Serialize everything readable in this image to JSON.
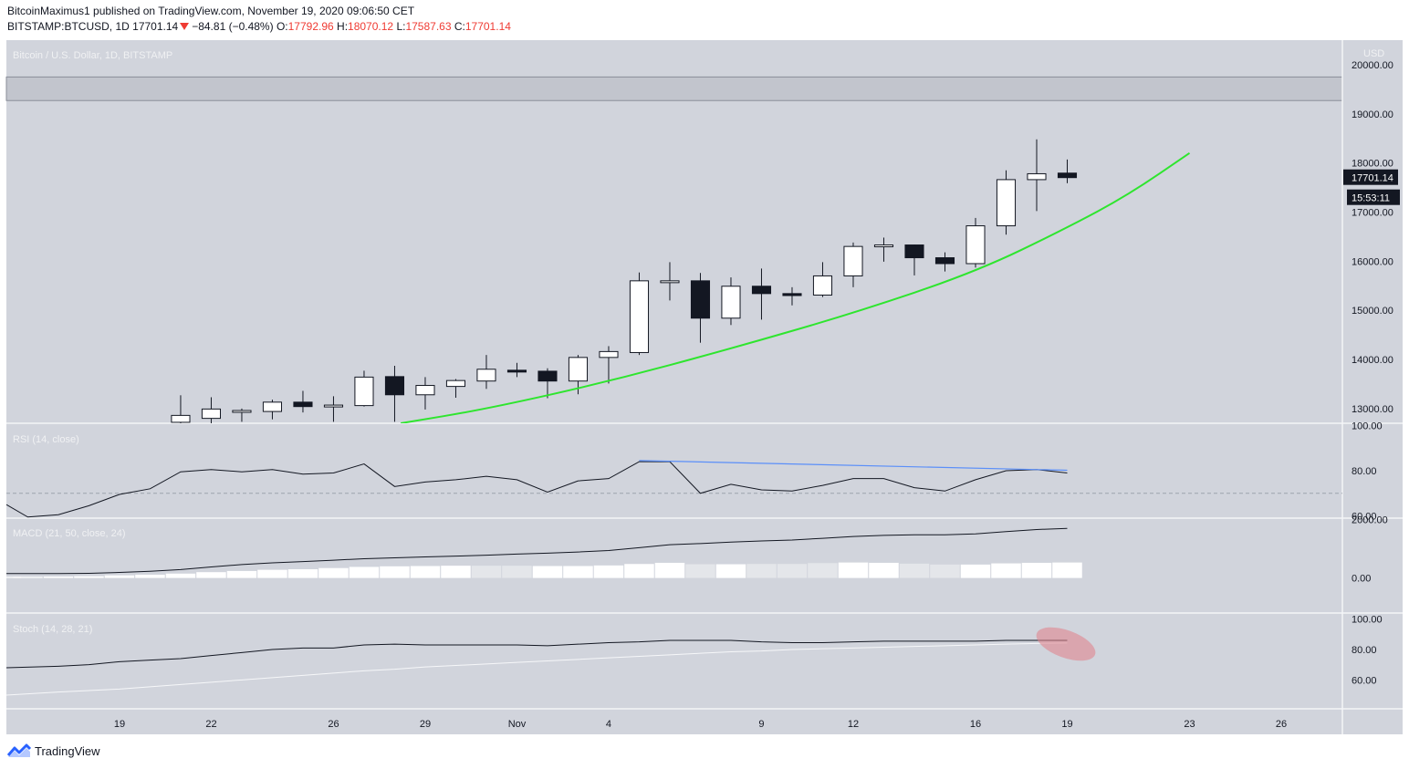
{
  "header": {
    "publisher": "BitcoinMaximus1",
    "publish_text": " published on TradingView.com, November 19, 2020 09:06:50 CET",
    "symbol": "BITSTAMP:BTCUSD, 1D",
    "last": "17701.14",
    "change": "−84.81 (−0.48%)",
    "o_label": "O:",
    "o_val": "17792.96",
    "h_label": "H:",
    "h_val": "18070.12",
    "l_label": "L:",
    "l_val": "17587.63",
    "c_label": "C:",
    "c_val": "17701.14"
  },
  "footer": {
    "brand": "TradingView"
  },
  "colors": {
    "pane_bg": "#d1d4dc",
    "up_candle": "#ffffff",
    "down_candle": "#131722",
    "curve": "#2ee52e",
    "rsi_trendline": "#5b8ff9",
    "highlight": "#e0868f"
  },
  "chart_data": [
    {
      "type": "candlestick",
      "title": "Bitcoin / U.S. Dollar, 1D, BITSTAMP",
      "currency": "USD",
      "y_ticks": [
        "13000.00",
        "14000.00",
        "15000.00",
        "16000.00",
        "17000.00",
        "18000.00",
        "19000.00",
        "20000.00"
      ],
      "ylim": [
        12700,
        20500
      ],
      "resistance_band": [
        19270,
        19750
      ],
      "price_label": "17701.14",
      "countdown_label": "15:53:11",
      "x_ticks": [
        {
          "day": 0,
          "label": "19"
        },
        {
          "day": 3,
          "label": "22"
        },
        {
          "day": 7,
          "label": "26"
        },
        {
          "day": 10,
          "label": "29"
        },
        {
          "day": 13,
          "label": "Nov"
        },
        {
          "day": 16,
          "label": "4"
        },
        {
          "day": 21,
          "label": "9"
        },
        {
          "day": 24,
          "label": "12"
        },
        {
          "day": 28,
          "label": "16"
        },
        {
          "day": 31,
          "label": "19"
        },
        {
          "day": 35,
          "label": "23"
        },
        {
          "day": 38,
          "label": "26"
        }
      ],
      "x_range": [
        -3.7,
        40.0
      ],
      "candles": [
        {
          "day": 2,
          "o": 12720,
          "h": 13270,
          "l": 12600,
          "c": 12860
        },
        {
          "day": 3,
          "o": 12800,
          "h": 13230,
          "l": 12660,
          "c": 12990
        },
        {
          "day": 4,
          "o": 12930,
          "h": 13000,
          "l": 12730,
          "c": 12960
        },
        {
          "day": 5,
          "o": 12940,
          "h": 13180,
          "l": 12780,
          "c": 13130
        },
        {
          "day": 6,
          "o": 13130,
          "h": 13360,
          "l": 12920,
          "c": 13040
        },
        {
          "day": 7,
          "o": 13060,
          "h": 13250,
          "l": 12730,
          "c": 13070
        },
        {
          "day": 8,
          "o": 13060,
          "h": 13770,
          "l": 13040,
          "c": 13640
        },
        {
          "day": 9,
          "o": 13650,
          "h": 13870,
          "l": 12730,
          "c": 13280
        },
        {
          "day": 10,
          "o": 13280,
          "h": 13640,
          "l": 12980,
          "c": 13470
        },
        {
          "day": 11,
          "o": 13450,
          "h": 13600,
          "l": 13220,
          "c": 13570
        },
        {
          "day": 12,
          "o": 13560,
          "h": 14090,
          "l": 13400,
          "c": 13800
        },
        {
          "day": 13,
          "o": 13780,
          "h": 13930,
          "l": 13640,
          "c": 13760
        },
        {
          "day": 14,
          "o": 13760,
          "h": 13820,
          "l": 13210,
          "c": 13560
        },
        {
          "day": 15,
          "o": 13560,
          "h": 14090,
          "l": 13290,
          "c": 14040
        },
        {
          "day": 16,
          "o": 14040,
          "h": 14270,
          "l": 13510,
          "c": 14160
        },
        {
          "day": 17,
          "o": 14140,
          "h": 15770,
          "l": 14090,
          "c": 15600
        },
        {
          "day": 18,
          "o": 15600,
          "h": 15980,
          "l": 15200,
          "c": 15600
        },
        {
          "day": 19,
          "o": 15600,
          "h": 15760,
          "l": 14340,
          "c": 14840
        },
        {
          "day": 20,
          "o": 14840,
          "h": 15670,
          "l": 14700,
          "c": 15490
        },
        {
          "day": 21,
          "o": 15490,
          "h": 15850,
          "l": 14810,
          "c": 15340
        },
        {
          "day": 22,
          "o": 15340,
          "h": 15470,
          "l": 15100,
          "c": 15300
        },
        {
          "day": 23,
          "o": 15310,
          "h": 15980,
          "l": 15270,
          "c": 15700
        },
        {
          "day": 24,
          "o": 15700,
          "h": 16380,
          "l": 15470,
          "c": 16300
        },
        {
          "day": 25,
          "o": 16300,
          "h": 16480,
          "l": 15990,
          "c": 16330
        },
        {
          "day": 26,
          "o": 16330,
          "h": 16340,
          "l": 15710,
          "c": 16070
        },
        {
          "day": 27,
          "o": 16070,
          "h": 16180,
          "l": 15790,
          "c": 15950
        },
        {
          "day": 28,
          "o": 15950,
          "h": 16880,
          "l": 15870,
          "c": 16720
        },
        {
          "day": 29,
          "o": 16720,
          "h": 17850,
          "l": 16540,
          "c": 17660
        },
        {
          "day": 30,
          "o": 17660,
          "h": 18480,
          "l": 17020,
          "c": 17780
        },
        {
          "day": 31,
          "o": 17792.96,
          "h": 18070.12,
          "l": 17587.63,
          "c": 17701.14
        }
      ],
      "curve": [
        {
          "day": 9.2,
          "y": 12700
        },
        {
          "day": 12,
          "y": 12990
        },
        {
          "day": 16,
          "y": 13550
        },
        {
          "day": 20,
          "y": 14220
        },
        {
          "day": 24,
          "y": 14940
        },
        {
          "day": 28,
          "y": 15780
        },
        {
          "day": 31,
          "y": 16680
        },
        {
          "day": 33,
          "y": 17350
        },
        {
          "day": 35,
          "y": 18200
        }
      ]
    },
    {
      "type": "line",
      "title": "RSI (14, close)",
      "y_ticks": [
        "60.00",
        "80.00",
        "100.00"
      ],
      "ylim": [
        59,
        101
      ],
      "midline": 70,
      "x": [
        -3.7,
        -3,
        -2,
        -1,
        0,
        1,
        2,
        3,
        4,
        5,
        6,
        7,
        8,
        9,
        10,
        11,
        12,
        13,
        14,
        15,
        16,
        17,
        18,
        19,
        20,
        21,
        22,
        23,
        24,
        25,
        26,
        27,
        28,
        29,
        30,
        31
      ],
      "values": [
        65,
        59.5,
        60.5,
        64.5,
        69.5,
        72,
        79.5,
        80.5,
        79.5,
        80.5,
        78.5,
        79,
        83,
        73,
        75,
        76,
        77.5,
        76,
        70.5,
        75.5,
        76.5,
        84,
        84,
        70,
        74,
        71.5,
        71,
        73.5,
        76.5,
        76.5,
        72.5,
        71,
        76,
        80,
        80.5,
        79
      ],
      "trendline": [
        {
          "day": 17,
          "y": 84.5
        },
        {
          "day": 31,
          "y": 80.2
        }
      ]
    },
    {
      "type": "line+bar",
      "title": "MACD (21, 50, close, 24)",
      "y_ticks": [
        "0.00",
        "2000.00"
      ],
      "ylim": [
        -1200,
        2050
      ],
      "x": [
        -3.7,
        -3,
        -2,
        -1,
        0,
        1,
        2,
        3,
        4,
        5,
        6,
        7,
        8,
        9,
        10,
        11,
        12,
        13,
        14,
        15,
        16,
        17,
        18,
        19,
        20,
        21,
        22,
        23,
        24,
        25,
        26,
        27,
        28,
        29,
        30,
        31
      ],
      "macd": [
        150,
        150,
        150,
        160,
        190,
        230,
        290,
        380,
        460,
        520,
        560,
        610,
        660,
        690,
        720,
        750,
        780,
        820,
        850,
        890,
        940,
        1040,
        1140,
        1180,
        1230,
        1270,
        1300,
        1360,
        1420,
        1460,
        1480,
        1480,
        1510,
        1590,
        1660,
        1700
      ],
      "histogram": [
        40,
        40,
        50,
        60,
        90,
        110,
        150,
        200,
        240,
        280,
        300,
        340,
        380,
        400,
        410,
        420,
        420,
        420,
        410,
        410,
        430,
        480,
        520,
        470,
        470,
        480,
        480,
        510,
        530,
        520,
        490,
        460,
        460,
        500,
        520,
        530
      ],
      "hist_color_codes": [
        "r",
        "r",
        "r",
        "r",
        "r",
        "r",
        "r",
        "r",
        "r",
        "r",
        "r",
        "r",
        "r",
        "r",
        "r",
        "r",
        "f",
        "f",
        "r",
        "r",
        "r",
        "r",
        "r",
        "f",
        "r",
        "f",
        "f",
        "f",
        "r",
        "r",
        "f",
        "f",
        "r",
        "r",
        "r",
        "r"
      ]
    },
    {
      "type": "line",
      "title": "Stoch (14, 28, 21)",
      "y_ticks": [
        "60.00",
        "80.00",
        "100.00"
      ],
      "ylim": [
        41,
        104
      ],
      "x": [
        -3.7,
        -2,
        -1,
        0,
        1,
        2,
        3,
        4,
        5,
        6,
        7,
        8,
        9,
        10,
        11,
        12,
        13,
        14,
        15,
        16,
        17,
        18,
        19,
        20,
        21,
        22,
        23,
        24,
        25,
        26,
        27,
        28,
        29,
        30,
        31
      ],
      "k": [
        68,
        69,
        70,
        72,
        73,
        74,
        76,
        78,
        80,
        81,
        81,
        83,
        83.5,
        83,
        83,
        83,
        83,
        82.5,
        83.5,
        84.5,
        85,
        86,
        86,
        86,
        85,
        84.5,
        84.5,
        85,
        85.5,
        85.5,
        85.5,
        85.5,
        86,
        86,
        86
      ],
      "d": [
        50,
        52,
        53,
        54,
        55.5,
        57,
        58.5,
        60,
        61.5,
        63,
        64.5,
        66,
        67,
        68.5,
        69.5,
        70.5,
        71.5,
        72.5,
        73.5,
        74.5,
        75.5,
        76.5,
        77.5,
        78.5,
        79,
        80,
        80.5,
        81,
        81.5,
        82,
        82.5,
        83,
        83.5,
        84,
        84.3
      ]
    }
  ]
}
